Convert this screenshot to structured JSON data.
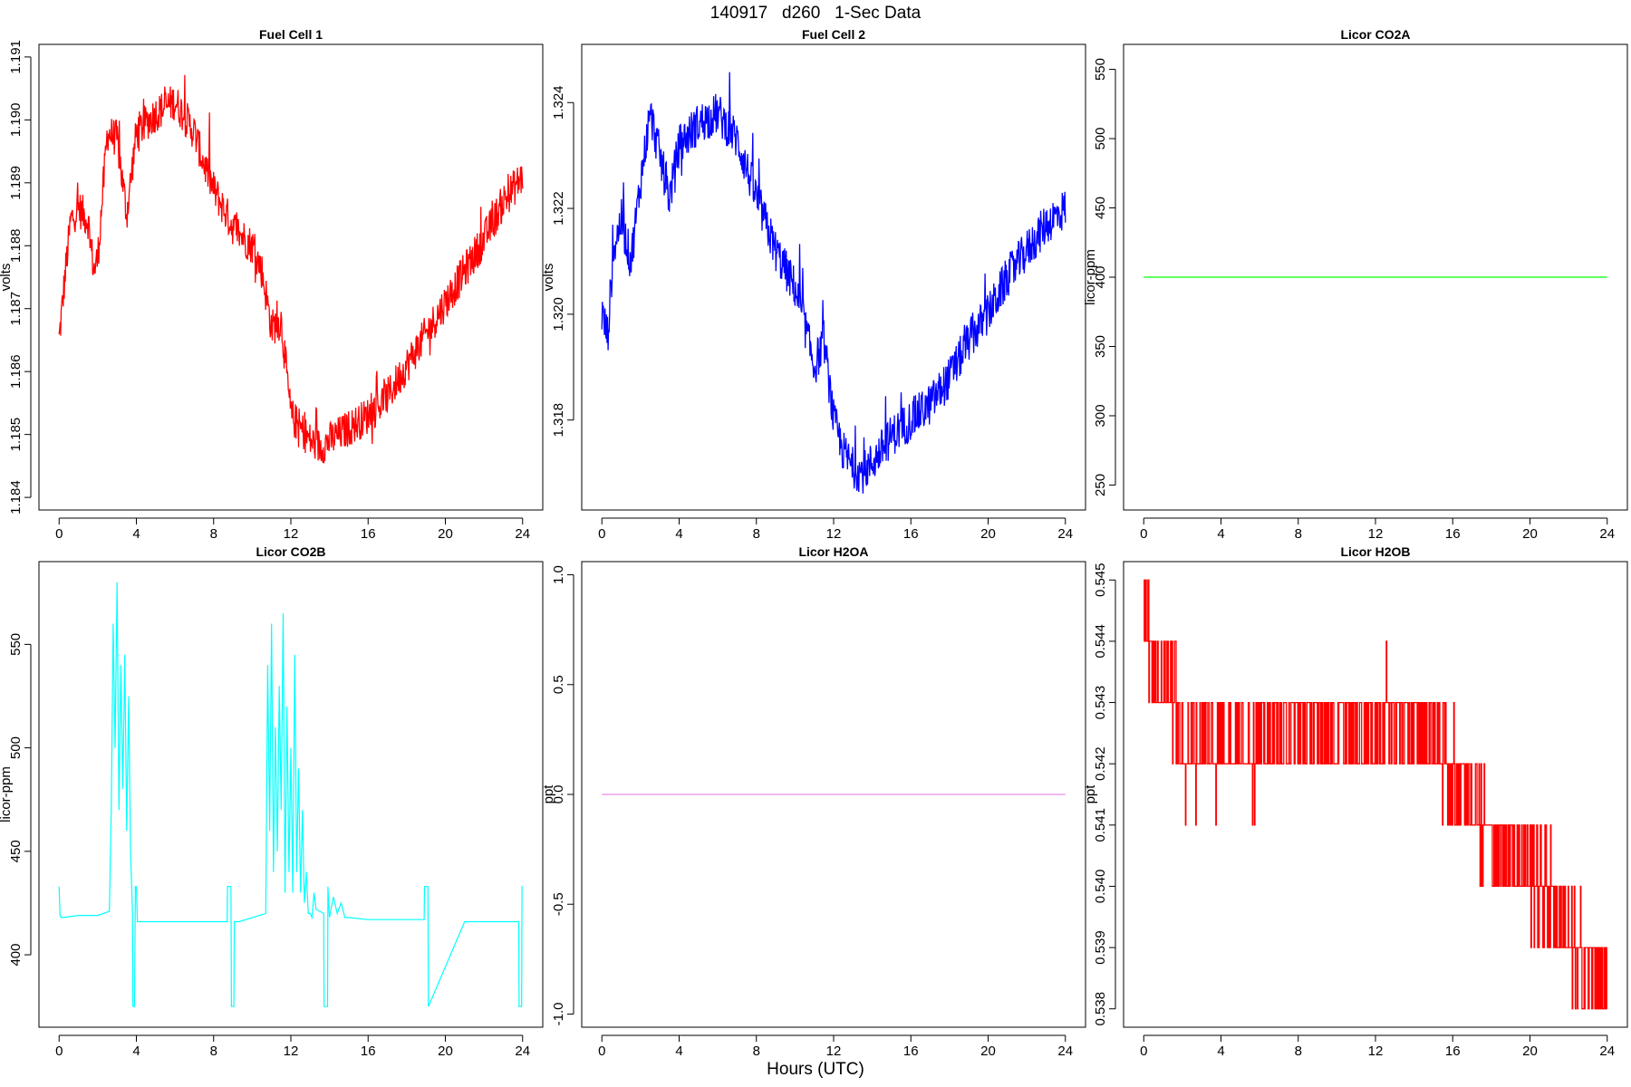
{
  "figure": {
    "title": "140917   d260   1-Sec Data",
    "xlabel": "Hours (UTC)"
  },
  "chart_data": [
    {
      "type": "line",
      "title": "Fuel Cell 1",
      "ylabel": "volts",
      "color": "#ff0000",
      "xlim": [
        0,
        24
      ],
      "ylim": [
        1.1838,
        1.1912
      ],
      "xticks": [
        0,
        4,
        8,
        12,
        16,
        20,
        24
      ],
      "yticks": [
        1.184,
        1.185,
        1.186,
        1.187,
        1.188,
        1.189,
        1.19,
        1.191
      ],
      "ytick_labels": [
        "1.184",
        "1.185",
        "1.186",
        "1.187",
        "1.188",
        "1.189",
        "1.190",
        "1.191"
      ],
      "noise": 0.0003,
      "series": [
        {
          "x": [
            0,
            0.3,
            0.6,
            1,
            1.5,
            1.8,
            2,
            2.5,
            3,
            3.5,
            4,
            5,
            6,
            7,
            7.5,
            8,
            9,
            10,
            10.5,
            11,
            11.5,
            12,
            12.5,
            13,
            13.5,
            14,
            15,
            16,
            17,
            18,
            19,
            20,
            21,
            22,
            23,
            24
          ],
          "y": [
            1.1865,
            1.1875,
            1.1884,
            1.1886,
            1.1884,
            1.1876,
            1.1878,
            1.1898,
            1.1897,
            1.1885,
            1.1898,
            1.1901,
            1.1903,
            1.1898,
            1.1893,
            1.1889,
            1.1883,
            1.188,
            1.1876,
            1.1867,
            1.1868,
            1.1853,
            1.1851,
            1.1849,
            1.1848,
            1.1849,
            1.1851,
            1.1853,
            1.1856,
            1.1861,
            1.1866,
            1.1871,
            1.1876,
            1.1881,
            1.1887,
            1.1891
          ]
        }
      ]
    },
    {
      "type": "line",
      "title": "Fuel Cell 2",
      "ylabel": "volts",
      "color": "#0000ff",
      "xlim": [
        0,
        24
      ],
      "ylim": [
        1.3163,
        1.3251
      ],
      "xticks": [
        0,
        4,
        8,
        12,
        16,
        20,
        24
      ],
      "yticks": [
        1.318,
        1.32,
        1.322,
        1.324
      ],
      "ytick_labels": [
        "1.318",
        "1.320",
        "1.322",
        "1.324"
      ],
      "noise": 0.0004,
      "series": [
        {
          "x": [
            0,
            0.3,
            0.6,
            1,
            1.5,
            2,
            2.5,
            3,
            3.5,
            4,
            5,
            6,
            7,
            8,
            9,
            10,
            10.5,
            11,
            11.5,
            12,
            12.5,
            13,
            13.5,
            14,
            15,
            16,
            17,
            18,
            19,
            20,
            21,
            22,
            23,
            24
          ],
          "y": [
            1.32,
            1.3196,
            1.3212,
            1.3218,
            1.321,
            1.3225,
            1.3238,
            1.323,
            1.3222,
            1.3232,
            1.3236,
            1.3238,
            1.3233,
            1.3222,
            1.3212,
            1.3205,
            1.3198,
            1.319,
            1.3195,
            1.318,
            1.3174,
            1.3171,
            1.317,
            1.3172,
            1.3177,
            1.318,
            1.3183,
            1.3188,
            1.3195,
            1.32,
            1.3207,
            1.3212,
            1.3217,
            1.322
          ]
        }
      ]
    },
    {
      "type": "line",
      "title": "Licor CO2A",
      "ylabel": "licor-ppm",
      "color": "#00ff00",
      "xlim": [
        0,
        24
      ],
      "ylim": [
        232,
        568
      ],
      "xticks": [
        0,
        4,
        8,
        12,
        16,
        20,
        24
      ],
      "yticks": [
        250,
        300,
        350,
        400,
        450,
        500,
        550
      ],
      "ytick_labels": [
        "250",
        "300",
        "350",
        "400",
        "450",
        "500",
        "550"
      ],
      "noise": 0,
      "series": [
        {
          "x": [
            0,
            24
          ],
          "y": [
            400,
            400
          ]
        }
      ]
    },
    {
      "type": "line",
      "title": "Licor CO2B",
      "ylabel": "licor-ppm",
      "color": "#00ffff",
      "xlim": [
        0,
        24
      ],
      "ylim": [
        365,
        590
      ],
      "xticks": [
        0,
        4,
        8,
        12,
        16,
        20,
        24
      ],
      "yticks": [
        400,
        450,
        500,
        550
      ],
      "ytick_labels": [
        "400",
        "450",
        "500",
        "550"
      ],
      "noise": 0,
      "series": [
        {
          "x": [
            0,
            0.05,
            0.1,
            0.2,
            1,
            2,
            2.6,
            2.7,
            2.8,
            2.9,
            3.0,
            3.1,
            3.2,
            3.3,
            3.4,
            3.5,
            3.6,
            3.7,
            3.8,
            3.82,
            3.9,
            3.95,
            4.0,
            4.05,
            6,
            8.7,
            8.72,
            8.9,
            8.92,
            9.05,
            9.07,
            9.3,
            9.32,
            10.7,
            10.8,
            10.9,
            11.0,
            11.1,
            11.2,
            11.3,
            11.4,
            11.5,
            11.6,
            11.7,
            11.8,
            11.9,
            12.0,
            12.1,
            12.2,
            12.3,
            12.4,
            12.5,
            12.6,
            12.7,
            12.8,
            12.9,
            13.0,
            13.1,
            13.2,
            13.3,
            13.5,
            13.7,
            13.72,
            13.9,
            13.92,
            14.0,
            14.2,
            14.4,
            14.6,
            14.8,
            15,
            16,
            18.9,
            18.92,
            19.1,
            19.12,
            21,
            23.8,
            23.82,
            23.95,
            23.97,
            24
          ],
          "y": [
            433,
            419,
            418,
            418,
            419,
            419,
            421,
            470,
            560,
            500,
            580,
            470,
            540,
            480,
            545,
            460,
            525,
            450,
            420,
            375,
            375,
            433,
            433,
            416,
            416,
            416,
            433,
            433,
            375,
            375,
            416,
            416,
            416,
            420,
            540,
            460,
            560,
            440,
            510,
            450,
            530,
            470,
            565,
            430,
            520,
            440,
            500,
            430,
            545,
            440,
            490,
            430,
            470,
            425,
            440,
            420,
            420,
            418,
            430,
            422,
            421,
            420,
            375,
            375,
            433,
            418,
            428,
            420,
            425,
            418,
            418,
            417,
            417,
            433,
            433,
            375,
            416,
            416,
            375,
            375,
            433,
            433
          ]
        }
      ]
    },
    {
      "type": "line",
      "title": "Licor H2OA",
      "ylabel": "ppt",
      "color": "#e88ce8",
      "xlim": [
        0,
        24
      ],
      "ylim": [
        -1.06,
        1.06
      ],
      "xticks": [
        0,
        4,
        8,
        12,
        16,
        20,
        24
      ],
      "yticks": [
        -1,
        -0.5,
        0,
        0.5,
        1
      ],
      "ytick_labels": [
        "-1.0",
        "-0.5",
        "0.0",
        "0.5",
        "1.0"
      ],
      "noise": 0,
      "series": [
        {
          "x": [
            0,
            24
          ],
          "y": [
            0,
            0
          ]
        }
      ]
    },
    {
      "type": "line",
      "title": "Licor H2OB",
      "ylabel": "ppt",
      "color": "#ff0000",
      "xlim": [
        0,
        24
      ],
      "ylim": [
        0.5377,
        0.5453
      ],
      "xticks": [
        0,
        4,
        8,
        12,
        16,
        20,
        24
      ],
      "yticks": [
        0.538,
        0.539,
        0.54,
        0.541,
        0.542,
        0.543,
        0.544,
        0.545
      ],
      "ytick_labels": [
        "0.538",
        "0.539",
        "0.540",
        "0.541",
        "0.542",
        "0.543",
        "0.544",
        "0.545"
      ],
      "noise": 0,
      "quantized_step": 0.001,
      "series": [
        {
          "x": [
            0,
            0.3,
            0.5,
            1,
            1.5,
            2,
            2.5,
            4,
            6,
            8,
            10,
            12,
            13,
            14,
            15,
            16,
            17,
            17.5,
            18,
            19,
            20,
            21,
            21.8,
            22,
            23,
            24
          ],
          "y": [
            0.5443,
            0.5441,
            0.5433,
            0.5434,
            0.5432,
            0.5421,
            0.5423,
            0.5422,
            0.5423,
            0.5424,
            0.5425,
            0.5427,
            0.5428,
            0.5426,
            0.5424,
            0.5418,
            0.5417,
            0.541,
            0.5408,
            0.5406,
            0.5402,
            0.5399,
            0.5392,
            0.5389,
            0.5387,
            0.5384
          ]
        }
      ]
    }
  ]
}
